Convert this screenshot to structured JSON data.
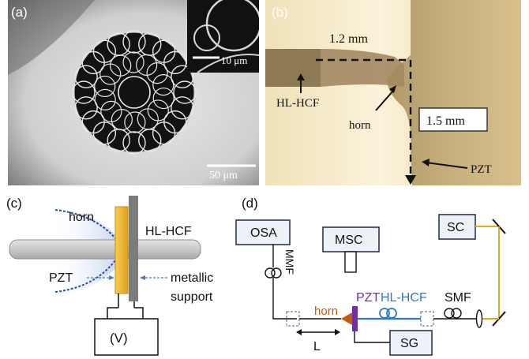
{
  "panels": {
    "a": {
      "label": "(a)",
      "scalebar_inset": "10 μm",
      "scalebar_main": "50 μm"
    },
    "b": {
      "label": "(b)",
      "dim_horizontal": "1.2 mm",
      "dim_vertical": "1.5 mm",
      "fiber_label": "HL-HCF",
      "horn_label": "horn",
      "pzt_label": "PZT"
    },
    "c": {
      "label": "(c)",
      "horn_label": "horn",
      "fiber_label": "HL-HCF",
      "pzt_label": "PZT",
      "support_label_line1": "metallic",
      "support_label_line2": "support",
      "voltage_label": "(V)"
    },
    "d": {
      "label": "(d)",
      "osa": "OSA",
      "msc": "MSC",
      "sc": "SC",
      "mmf": "MMF",
      "pzt": "PZT",
      "hlhcf": "HL-HCF",
      "smf": "SMF",
      "horn": "horn",
      "l_label": "L",
      "sg": "SG"
    }
  },
  "colors": {
    "pzt_gold": "#f0b62d",
    "support_gray": "#7c7c7c",
    "horn_blue": "#2a4f9c",
    "fiber_blue": "#2b7cc4",
    "pzt_purple": "#7030a0",
    "horn_orange": "#c55a11",
    "laser_yellow": "#e6a817"
  }
}
